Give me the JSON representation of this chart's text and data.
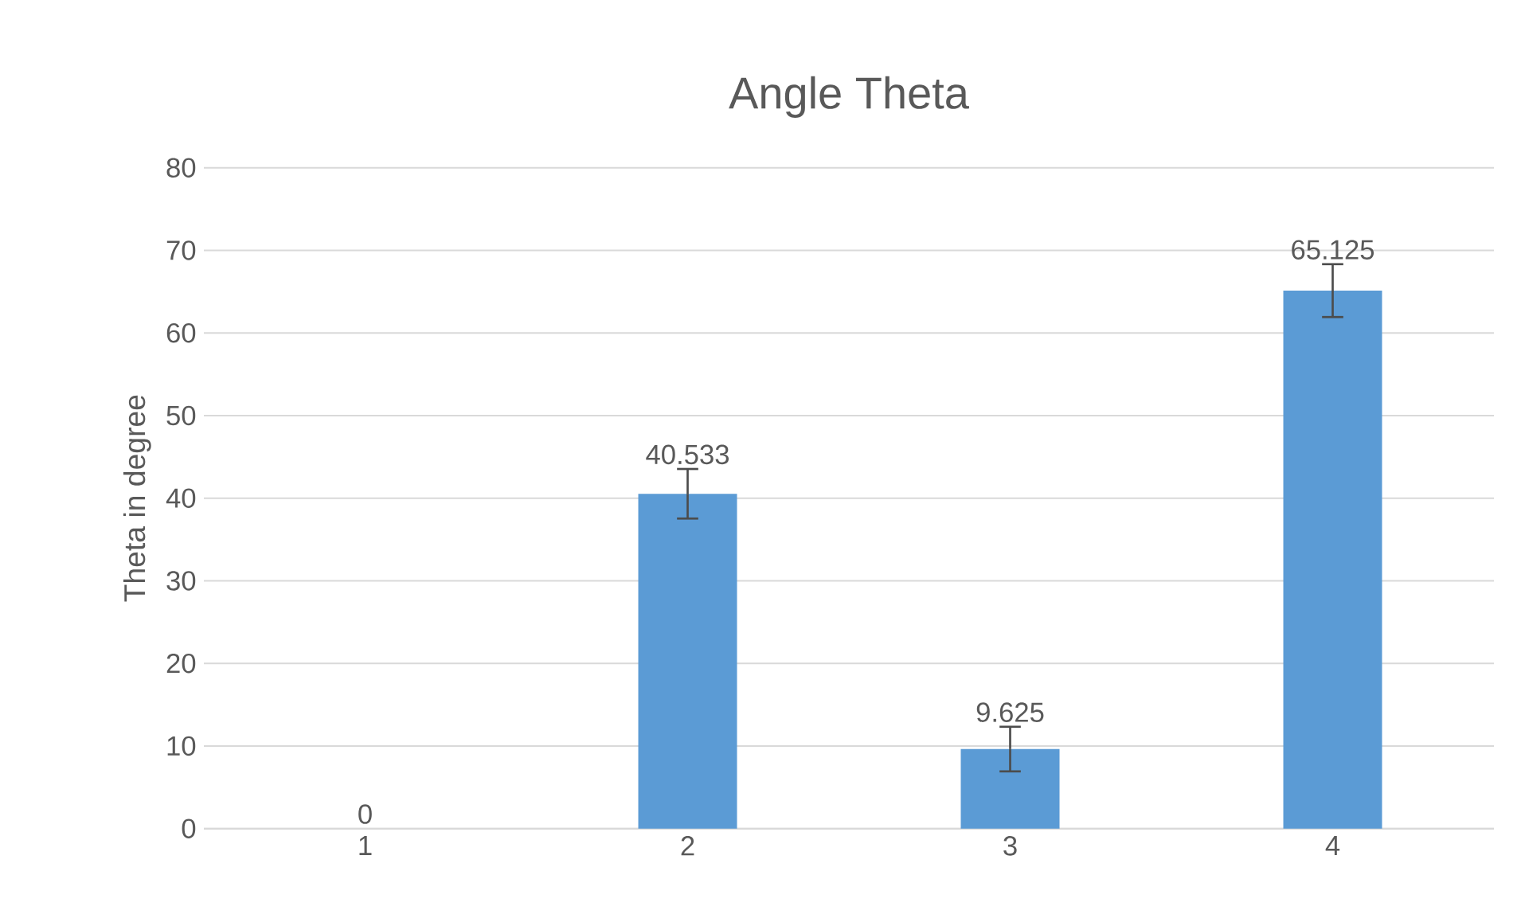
{
  "chart_data": {
    "type": "bar",
    "title": "Angle Theta",
    "ylabel": "Theta in degree",
    "categories": [
      "1",
      "2",
      "3",
      "4"
    ],
    "values": [
      0,
      40.533,
      9.625,
      65.125
    ],
    "errors": [
      null,
      3,
      2.7,
      3.2
    ],
    "color": "#5b9bd5",
    "ylim": [
      0,
      80
    ],
    "yticks": [
      0,
      10,
      20,
      30,
      40,
      50,
      60,
      70,
      80
    ],
    "grid": "y",
    "data_labels": true
  }
}
